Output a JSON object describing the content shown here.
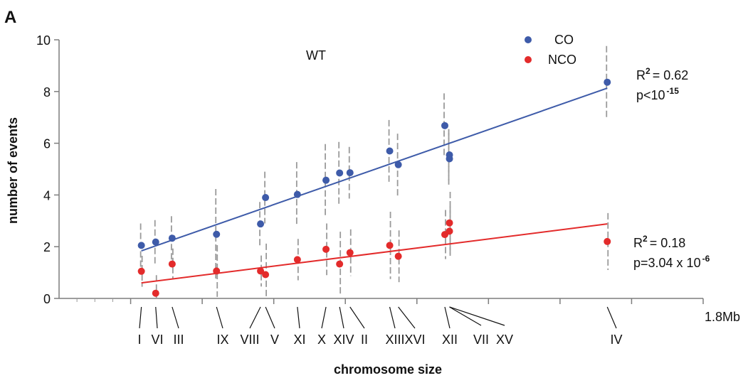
{
  "chart_data": {
    "type": "scatter",
    "panel_label": "A",
    "title": "WT",
    "xlabel": "chromosome size",
    "ylabel": "number of events",
    "x_end_label": "1.8Mb",
    "xlim": [
      0,
      1.8
    ],
    "ylim": [
      0,
      10
    ],
    "y_ticks": [
      0,
      2,
      4,
      6,
      8,
      10
    ],
    "legend_position": "top-right",
    "x_ticks": [
      0.2,
      0.4,
      0.6,
      0.8,
      1.0,
      1.2,
      1.4,
      1.6,
      1.8
    ],
    "chromosomes": [
      {
        "name": "I",
        "size": 0.23
      },
      {
        "name": "VI",
        "size": 0.27
      },
      {
        "name": "III",
        "size": 0.316
      },
      {
        "name": "IX",
        "size": 0.44
      },
      {
        "name": "VIII",
        "size": 0.563
      },
      {
        "name": "V",
        "size": 0.577
      },
      {
        "name": "XI",
        "size": 0.666
      },
      {
        "name": "X",
        "size": 0.746
      },
      {
        "name": "XIV",
        "size": 0.784
      },
      {
        "name": "II",
        "size": 0.813
      },
      {
        "name": "XIII",
        "size": 0.924
      },
      {
        "name": "XVI",
        "size": 0.948
      },
      {
        "name": "XII",
        "size": 1.078
      },
      {
        "name": "VII",
        "size": 1.091
      },
      {
        "name": "XV",
        "size": 1.091
      },
      {
        "name": "IV",
        "size": 1.532
      }
    ],
    "series": [
      {
        "name": "CO",
        "color": "#3e5ba9",
        "points": [
          {
            "x": 0.23,
            "y": 2.05,
            "err": 0.85
          },
          {
            "x": 0.27,
            "y": 2.18,
            "err": 0.85
          },
          {
            "x": 0.316,
            "y": 2.33,
            "err": 0.85
          },
          {
            "x": 0.44,
            "y": 2.48,
            "err": 1.75
          },
          {
            "x": 0.563,
            "y": 2.88,
            "err": 0.85
          },
          {
            "x": 0.577,
            "y": 3.9,
            "err": 1.0
          },
          {
            "x": 0.666,
            "y": 4.02,
            "err": 1.25
          },
          {
            "x": 0.746,
            "y": 4.57,
            "err": 1.4
          },
          {
            "x": 0.784,
            "y": 4.85,
            "err": 1.2
          },
          {
            "x": 0.813,
            "y": 4.86,
            "err": 1.0
          },
          {
            "x": 0.924,
            "y": 5.7,
            "err": 1.2
          },
          {
            "x": 0.948,
            "y": 5.17,
            "err": 1.2
          },
          {
            "x": 1.078,
            "y": 6.68,
            "err": 1.25
          },
          {
            "x": 1.091,
            "y": 5.55,
            "err": 1.0
          },
          {
            "x": 1.091,
            "y": 5.4,
            "err": 1.0
          },
          {
            "x": 1.532,
            "y": 8.36,
            "err": 1.4
          }
        ],
        "fit": {
          "x": [
            0.23,
            1.532
          ],
          "y": [
            1.84,
            8.13
          ]
        },
        "r2_label": "R",
        "r2_exp": "2",
        "r2_value": "= 0.62",
        "p_label": "p<10",
        "p_exp": "-15"
      },
      {
        "name": "NCO",
        "color": "#e32b2b",
        "points": [
          {
            "x": 0.23,
            "y": 1.05,
            "err": 0.6
          },
          {
            "x": 0.27,
            "y": 0.2,
            "err": 0.7
          },
          {
            "x": 0.316,
            "y": 1.33,
            "err": 0.6
          },
          {
            "x": 0.44,
            "y": 1.06,
            "err": 1.0
          },
          {
            "x": 0.563,
            "y": 1.06,
            "err": 0.6
          },
          {
            "x": 0.577,
            "y": 0.92,
            "err": 1.2
          },
          {
            "x": 0.666,
            "y": 1.5,
            "err": 0.8
          },
          {
            "x": 0.746,
            "y": 1.9,
            "err": 1.0
          },
          {
            "x": 0.784,
            "y": 1.33,
            "err": 1.25
          },
          {
            "x": 0.813,
            "y": 1.77,
            "err": 0.9
          },
          {
            "x": 0.924,
            "y": 2.05,
            "err": 1.3
          },
          {
            "x": 0.948,
            "y": 1.63,
            "err": 1.0
          },
          {
            "x": 1.078,
            "y": 2.47,
            "err": 0.95
          },
          {
            "x": 1.091,
            "y": 2.92,
            "err": 1.2
          },
          {
            "x": 1.091,
            "y": 2.6,
            "err": 0.95
          },
          {
            "x": 1.532,
            "y": 2.2,
            "err": 1.1
          }
        ],
        "fit": {
          "x": [
            0.23,
            1.532
          ],
          "y": [
            0.6,
            2.88
          ]
        },
        "r2_label": "R",
        "r2_exp": "2",
        "r2_value": "= 0.18",
        "p_label": "p=3.04 x 10",
        "p_exp": "-6"
      }
    ]
  }
}
